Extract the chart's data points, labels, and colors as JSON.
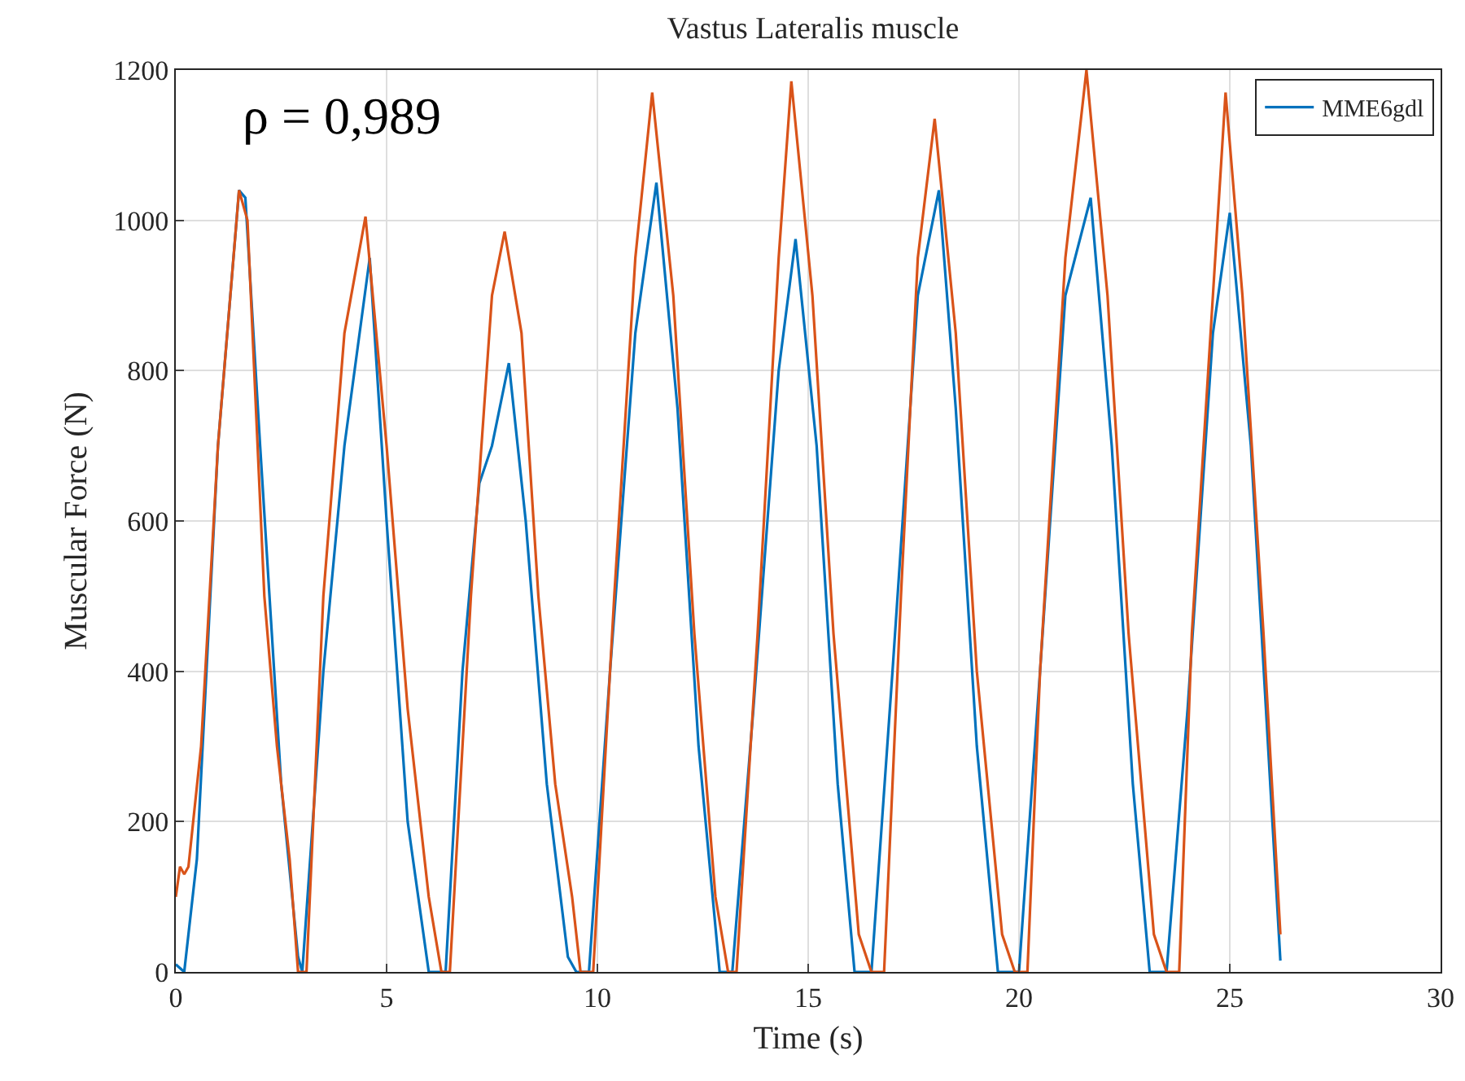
{
  "chart_data": {
    "type": "line",
    "title": "Vastus Lateralis muscle",
    "xlabel": "Time (s)",
    "ylabel": "Muscular Force (N)",
    "annotations": [
      "ρ = 0,989"
    ],
    "xlim": [
      0,
      30
    ],
    "xticks": [
      0,
      5,
      10,
      15,
      20,
      25,
      30
    ],
    "ylim": [
      0,
      1200
    ],
    "yticks": [
      0,
      200,
      400,
      600,
      800,
      1000,
      1200
    ],
    "grid": true,
    "legend": "top right",
    "line_style": "solid",
    "marker": "none",
    "series": [
      {
        "name": "MME6gdl",
        "color": "#0072bd",
        "x": [
          0,
          0.2,
          0.5,
          1.0,
          1.5,
          1.65,
          2.0,
          2.5,
          2.9,
          3.0,
          3.5,
          4.0,
          4.6,
          5.0,
          5.5,
          6.0,
          6.2,
          6.4,
          6.8,
          7.2,
          7.5,
          7.9,
          8.3,
          8.8,
          9.3,
          9.5,
          9.8,
          10.3,
          10.9,
          11.4,
          11.9,
          12.4,
          12.9,
          13.1,
          13.2,
          13.7,
          14.3,
          14.7,
          15.2,
          15.7,
          16.1,
          16.4,
          16.5,
          17.0,
          17.6,
          18.1,
          18.5,
          19.0,
          19.5,
          19.8,
          20.0,
          20.5,
          21.1,
          21.7,
          22.2,
          22.7,
          23.1,
          23.4,
          23.5,
          24.0,
          24.6,
          25.0,
          25.5,
          26.2
        ],
        "values": [
          10,
          0,
          150,
          700,
          1040,
          1030,
          700,
          250,
          20,
          0,
          400,
          700,
          950,
          600,
          200,
          0,
          0,
          0,
          400,
          650,
          700,
          810,
          600,
          250,
          20,
          0,
          0,
          400,
          850,
          1050,
          750,
          300,
          0,
          0,
          0,
          350,
          800,
          975,
          700,
          250,
          0,
          0,
          0,
          400,
          900,
          1040,
          750,
          300,
          0,
          0,
          0,
          400,
          900,
          1030,
          700,
          250,
          0,
          0,
          0,
          350,
          850,
          1010,
          700,
          15
        ]
      },
      {
        "color": "#d95319",
        "x": [
          0,
          0.1,
          0.2,
          0.3,
          0.6,
          1.0,
          1.5,
          1.7,
          2.1,
          2.4,
          2.7,
          2.9,
          3.05,
          3.1,
          3.5,
          4.0,
          4.5,
          5.0,
          5.5,
          6.0,
          6.3,
          6.4,
          6.5,
          7.0,
          7.5,
          7.8,
          8.2,
          8.6,
          9.0,
          9.4,
          9.6,
          9.8,
          9.9,
          10.4,
          10.9,
          11.3,
          11.8,
          12.3,
          12.8,
          13.1,
          13.3,
          13.8,
          14.3,
          14.6,
          15.1,
          15.6,
          16.2,
          16.5,
          16.8,
          17.2,
          17.6,
          18.0,
          18.5,
          19.0,
          19.6,
          19.9,
          20.2,
          20.5,
          21.1,
          21.6,
          22.1,
          22.6,
          23.2,
          23.5,
          23.8,
          24.1,
          24.6,
          24.9,
          25.3,
          25.8,
          26.2
        ],
        "values": [
          100,
          140,
          130,
          140,
          300,
          700,
          1040,
          1000,
          500,
          300,
          150,
          0,
          0,
          0,
          500,
          850,
          1005,
          700,
          350,
          100,
          0,
          0,
          0,
          500,
          900,
          985,
          850,
          500,
          250,
          100,
          0,
          0,
          0,
          500,
          950,
          1170,
          900,
          450,
          100,
          0,
          0,
          450,
          950,
          1185,
          900,
          450,
          50,
          0,
          0,
          500,
          950,
          1135,
          850,
          400,
          50,
          0,
          0,
          400,
          950,
          1200,
          900,
          450,
          50,
          0,
          0,
          450,
          900,
          1170,
          900,
          450,
          50
        ]
      }
    ]
  }
}
